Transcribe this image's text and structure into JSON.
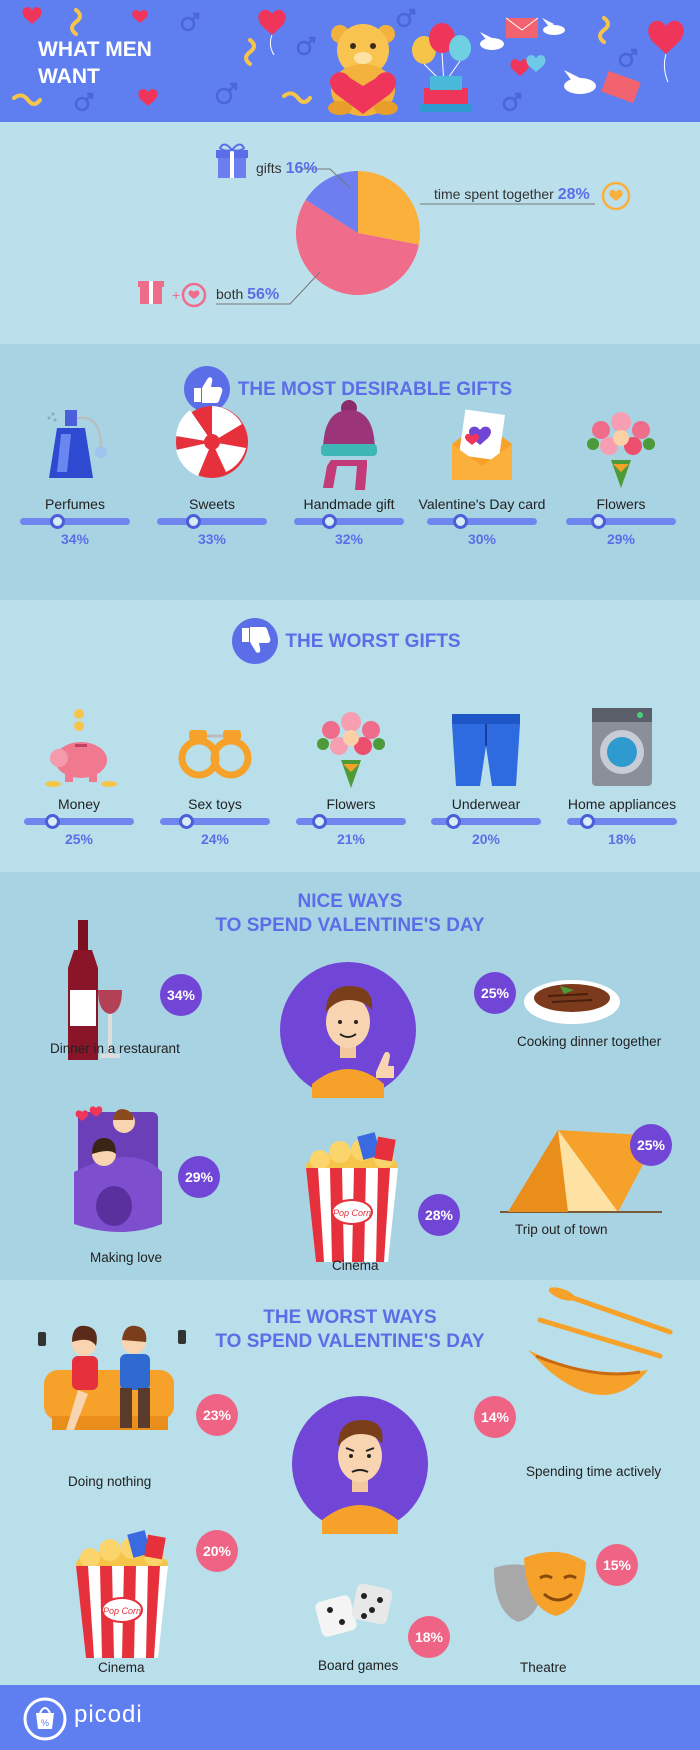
{
  "header": {
    "title": "WHAT MEN WANT"
  },
  "chart_data": {
    "type": "pie",
    "slices": [
      {
        "label": "time spent together",
        "value": 28,
        "value_label": "28%",
        "color": "#fbb03b"
      },
      {
        "label": "both",
        "value": 56,
        "value_label": "56%",
        "color": "#f06c8b"
      },
      {
        "label": "gifts",
        "value": 16,
        "value_label": "16%",
        "color": "#6c7ef0"
      }
    ]
  },
  "desirable": {
    "title": "THE MOST DESIRABLE GIFTS",
    "items": [
      {
        "name": "Perfumes",
        "value": 34,
        "pct": "34%",
        "icon": "perfume-icon"
      },
      {
        "name": "Sweets",
        "value": 33,
        "pct": "33%",
        "icon": "lollipop-icon"
      },
      {
        "name": "Handmade gift",
        "value": 32,
        "pct": "32%",
        "icon": "knitted-hat-icon"
      },
      {
        "name": "Valentine's Day card",
        "value": 30,
        "pct": "30%",
        "icon": "card-icon"
      },
      {
        "name": "Flowers",
        "value": 29,
        "pct": "29%",
        "icon": "bouquet-icon"
      }
    ]
  },
  "worst_gifts": {
    "title": "THE WORST GIFTS",
    "items": [
      {
        "name": "Money",
        "value": 25,
        "pct": "25%",
        "icon": "piggy-bank-icon"
      },
      {
        "name": "Sex toys",
        "value": 24,
        "pct": "24%",
        "icon": "handcuffs-icon"
      },
      {
        "name": "Flowers",
        "value": 21,
        "pct": "21%",
        "icon": "bouquet-icon"
      },
      {
        "name": "Underwear",
        "value": 20,
        "pct": "20%",
        "icon": "shorts-icon"
      },
      {
        "name": "Home appliances",
        "value": 18,
        "pct": "18%",
        "icon": "washing-machine-icon"
      }
    ]
  },
  "nice_ways": {
    "title_line1": "NICE WAYS",
    "title_line2": "TO SPEND VALENTINE'S DAY",
    "items": [
      {
        "name": "Dinner in a restaurant",
        "pct": "34%",
        "icon": "wine-icon"
      },
      {
        "name": "Cooking dinner together",
        "pct": "25%",
        "icon": "steak-icon"
      },
      {
        "name": "Making love",
        "pct": "29%",
        "icon": "couple-bed-icon"
      },
      {
        "name": "Cinema",
        "pct": "28%",
        "icon": "popcorn-icon"
      },
      {
        "name": "Trip out of town",
        "pct": "25%",
        "icon": "tent-icon"
      }
    ]
  },
  "worst_ways": {
    "title_line1": "THE WORST WAYS",
    "title_line2": "TO SPEND VALENTINE'S DAY",
    "items": [
      {
        "name": "Doing nothing",
        "pct": "23%",
        "icon": "couch-couple-icon"
      },
      {
        "name": "Spending time actively",
        "pct": "14%",
        "icon": "kayak-icon"
      },
      {
        "name": "Cinema",
        "pct": "20%",
        "icon": "popcorn-icon"
      },
      {
        "name": "Board games",
        "pct": "18%",
        "icon": "dice-icon"
      },
      {
        "name": "Theatre",
        "pct": "15%",
        "icon": "theatre-masks-icon"
      }
    ]
  },
  "popcorn_text": "Pop Corn",
  "footer": {
    "brand": "picodi"
  }
}
